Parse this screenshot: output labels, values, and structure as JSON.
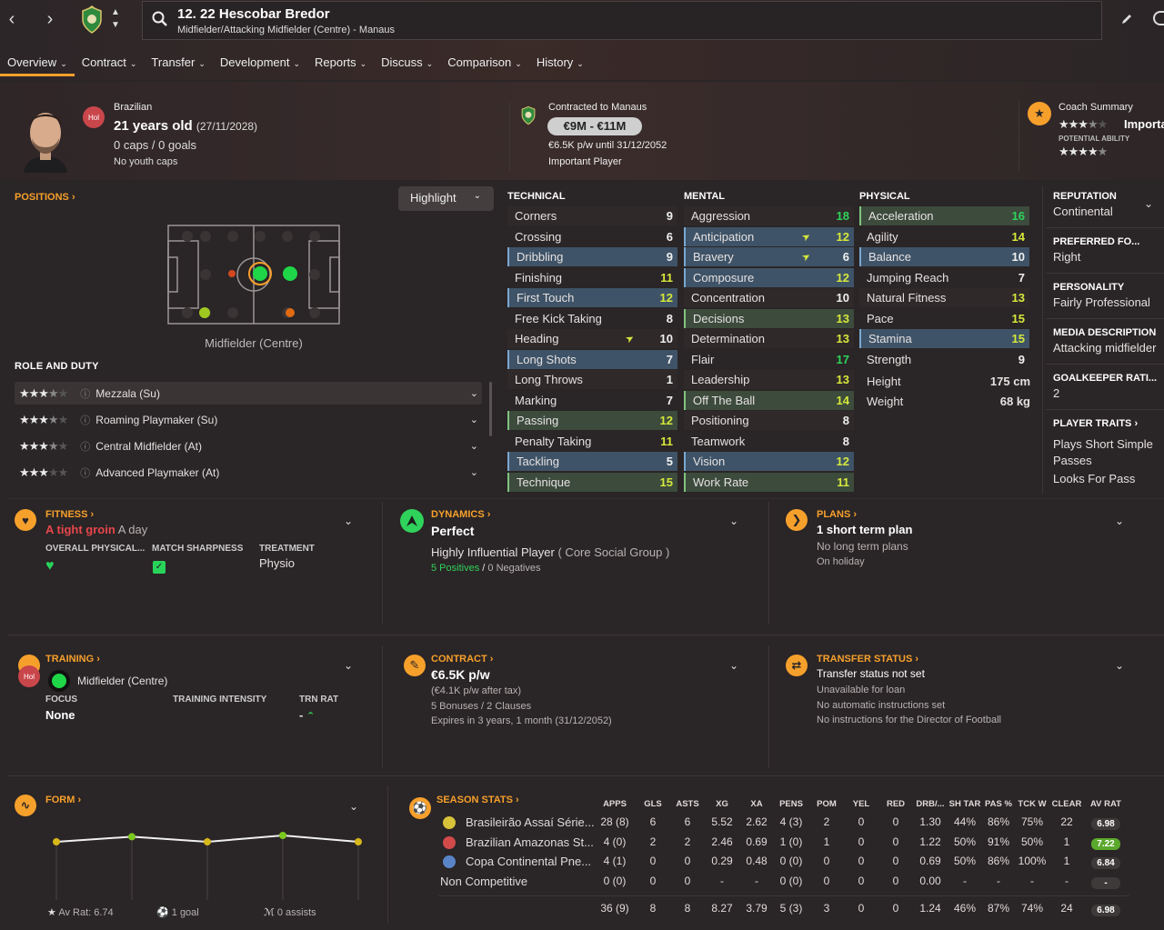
{
  "header": {
    "player_name": "12. 22 Hescobar Bredor",
    "player_subtitle": "Midfielder/Attacking Midfielder (Centre) - Manaus",
    "tabs": [
      {
        "label": "Overview"
      },
      {
        "label": "Contract"
      },
      {
        "label": "Transfer"
      },
      {
        "label": "Development"
      },
      {
        "label": "Reports"
      },
      {
        "label": "Discuss"
      },
      {
        "label": "Comparison"
      },
      {
        "label": "History"
      }
    ]
  },
  "profile": {
    "badge": "Hol",
    "nationality": "Brazilian",
    "age": "21 years old",
    "dob": "(27/11/2028)",
    "caps": "0 caps / 0 goals",
    "youth_caps": "No youth caps"
  },
  "contract_info": {
    "contracted_to": "Contracted to Manaus",
    "value": "€9M - €11M",
    "wage": "€6.5K p/w until 31/12/2052",
    "status": "Important Player"
  },
  "coach_summary": {
    "label": "Coach Summary",
    "text": "Importa",
    "potential_label": "POTENTIAL ABILITY"
  },
  "positions": {
    "label": "POSITIONS",
    "highlight_label": "Highlight",
    "position_name": "Midfielder (Centre)",
    "role_label": "ROLE AND DUTY",
    "roles": [
      {
        "name": "Mezzala (Su)",
        "stars": 3.5
      },
      {
        "name": "Roaming Playmaker (Su)",
        "stars": 3.5
      },
      {
        "name": "Central Midfielder (At)",
        "stars": 3.5
      },
      {
        "name": "Advanced Playmaker (At)",
        "stars": 3
      }
    ]
  },
  "attributes": {
    "technical_label": "TECHNICAL",
    "mental_label": "MENTAL",
    "physical_label": "PHYSICAL",
    "technical": [
      {
        "name": "Corners",
        "value": "9"
      },
      {
        "name": "Crossing",
        "value": "6"
      },
      {
        "name": "Dribbling",
        "value": "9"
      },
      {
        "name": "Finishing",
        "value": "11"
      },
      {
        "name": "First Touch",
        "value": "12"
      },
      {
        "name": "Free Kick Taking",
        "value": "8"
      },
      {
        "name": "Heading",
        "value": "10"
      },
      {
        "name": "Long Shots",
        "value": "7"
      },
      {
        "name": "Long Throws",
        "value": "1"
      },
      {
        "name": "Marking",
        "value": "7"
      },
      {
        "name": "Passing",
        "value": "12"
      },
      {
        "name": "Penalty Taking",
        "value": "11"
      },
      {
        "name": "Tackling",
        "value": "5"
      },
      {
        "name": "Technique",
        "value": "15"
      }
    ],
    "mental": [
      {
        "name": "Aggression",
        "value": "18"
      },
      {
        "name": "Anticipation",
        "value": "12"
      },
      {
        "name": "Bravery",
        "value": "6"
      },
      {
        "name": "Composure",
        "value": "12"
      },
      {
        "name": "Concentration",
        "value": "10"
      },
      {
        "name": "Decisions",
        "value": "13"
      },
      {
        "name": "Determination",
        "value": "13"
      },
      {
        "name": "Flair",
        "value": "17"
      },
      {
        "name": "Leadership",
        "value": "13"
      },
      {
        "name": "Off The Ball",
        "value": "14"
      },
      {
        "name": "Positioning",
        "value": "8"
      },
      {
        "name": "Teamwork",
        "value": "8"
      },
      {
        "name": "Vision",
        "value": "12"
      },
      {
        "name": "Work Rate",
        "value": "11"
      }
    ],
    "physical": [
      {
        "name": "Acceleration",
        "value": "16"
      },
      {
        "name": "Agility",
        "value": "14"
      },
      {
        "name": "Balance",
        "value": "10"
      },
      {
        "name": "Jumping Reach",
        "value": "7"
      },
      {
        "name": "Natural Fitness",
        "value": "13"
      },
      {
        "name": "Pace",
        "value": "15"
      },
      {
        "name": "Stamina",
        "value": "15"
      },
      {
        "name": "Strength",
        "value": "9"
      }
    ],
    "height_label": "Height",
    "height": "175 cm",
    "weight_label": "Weight",
    "weight": "68 kg"
  },
  "sidebar": {
    "reputation_label": "REPUTATION",
    "reputation": "Continental",
    "foot_label": "PREFERRED FO...",
    "foot": "Right",
    "personality_label": "PERSONALITY",
    "personality": "Fairly Professional",
    "media_label": "MEDIA DESCRIPTION",
    "media": "Attacking midfielder",
    "gk_label": "GOALKEEPER RATI...",
    "gk": "2",
    "traits_label": "PLAYER TRAITS",
    "trait1": "Plays Short Simple Passes",
    "trait2": "Looks For Pass"
  },
  "fitness": {
    "label": "FITNESS",
    "status": "A tight groin",
    "duration": "A day",
    "overall_label": "OVERALL PHYSICAL...",
    "sharpness_label": "MATCH SHARPNESS",
    "treatment_label": "TREATMENT",
    "treatment": "Physio"
  },
  "dynamics": {
    "label": "DYNAMICS",
    "status": "Perfect",
    "influence": "Highly Influential Player",
    "group": "( Core Social Group )",
    "positives": "5 Positives",
    "sep": "/",
    "negatives": "0 Negatives"
  },
  "plans": {
    "label": "PLANS",
    "short": "1 short term plan",
    "long": "No long term plans",
    "holiday": "On holiday"
  },
  "training": {
    "label": "TRAINING",
    "badge": "Hol",
    "position": "Midfielder (Centre)",
    "focus_label": "FOCUS",
    "focus": "None",
    "intensity_label": "TRAINING INTENSITY",
    "trn_label": "TRN RAT",
    "trn": "-"
  },
  "contract": {
    "label": "CONTRACT",
    "wage": "€6.5K p/w",
    "after_tax": "(€4.1K p/w after tax)",
    "bonuses": "5 Bonuses / 2 Clauses",
    "expires": "Expires in 3 years, 1 month (31/12/2052)"
  },
  "transfer_status": {
    "label": "TRANSFER STATUS",
    "status": "Transfer status not set",
    "loan": "Unavailable for loan",
    "auto": "No automatic instructions set",
    "director": "No instructions for the Director of Football"
  },
  "form": {
    "label": "FORM",
    "av_rat": "Av Rat: 6.74",
    "goals": "1 goal",
    "assists": "0 assists",
    "points": [
      6.7,
      6.9,
      6.7,
      6.95,
      6.7
    ]
  },
  "season_stats": {
    "label": "SEASON STATS",
    "columns": [
      "APPS",
      "GLS",
      "ASTS",
      "XG",
      "XA",
      "PENS",
      "POM",
      "YEL",
      "RED",
      "DRB/...",
      "SH TAR",
      "PAS %",
      "TCK W",
      "CLEAR",
      "AV RAT"
    ],
    "rows": [
      {
        "comp": "Brasileirão Assaí Série...",
        "values": [
          "28 (8)",
          "6",
          "6",
          "5.52",
          "2.62",
          "4 (3)",
          "2",
          "0",
          "0",
          "1.30",
          "44%",
          "86%",
          "75%",
          "22"
        ],
        "rating": "6.98",
        "rating_color": "grey"
      },
      {
        "comp": "Brazilian Amazonas St...",
        "values": [
          "4 (0)",
          "2",
          "2",
          "2.46",
          "0.69",
          "1 (0)",
          "1",
          "0",
          "0",
          "1.22",
          "50%",
          "91%",
          "50%",
          "1"
        ],
        "rating": "7.22",
        "rating_color": "green"
      },
      {
        "comp": "Copa Continental Pne...",
        "values": [
          "4 (1)",
          "0",
          "0",
          "0.29",
          "0.48",
          "0 (0)",
          "0",
          "0",
          "0",
          "0.69",
          "50%",
          "86%",
          "100%",
          "1"
        ],
        "rating": "6.84",
        "rating_color": "grey"
      },
      {
        "comp": "Non Competitive",
        "values": [
          "0 (0)",
          "0",
          "0",
          "-",
          "-",
          "0 (0)",
          "0",
          "0",
          "0",
          "0.00",
          "-",
          "-",
          "-",
          "-"
        ],
        "rating": "-",
        "rating_color": "grey"
      }
    ],
    "totals": [
      "36 (9)",
      "8",
      "8",
      "8.27",
      "3.79",
      "5 (3)",
      "3",
      "0",
      "0",
      "1.24",
      "46%",
      "87%",
      "74%",
      "24"
    ],
    "total_rating": "6.98"
  }
}
